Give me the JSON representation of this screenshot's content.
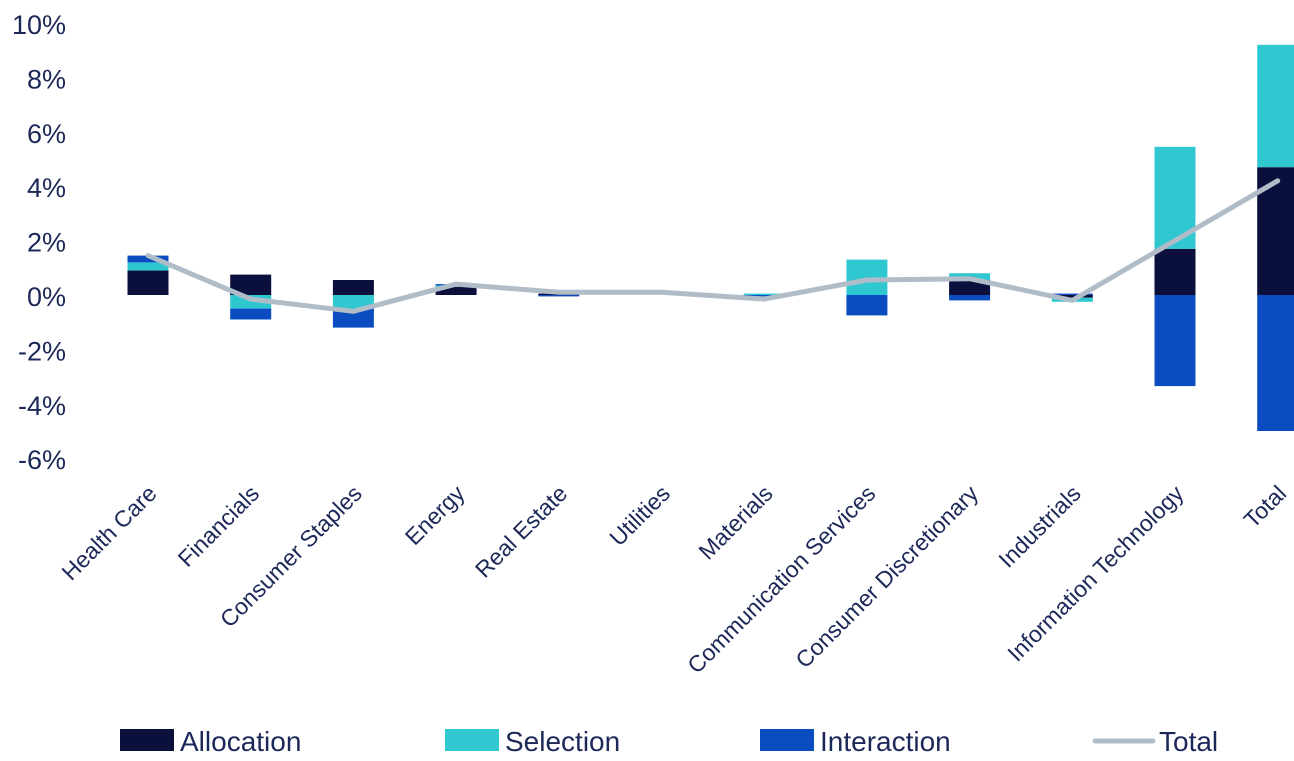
{
  "chart_data": {
    "type": "bar",
    "stacked": true,
    "categories": [
      "Health Care",
      "Financials",
      "Consumer Staples",
      "Energy",
      "Real Estate",
      "Utilities",
      "Materials",
      "Communication Services",
      "Consumer Discretionary",
      "Industrials",
      "Information Technology",
      "Total"
    ],
    "series": [
      {
        "name": "Allocation",
        "kind": "bar",
        "color": "#0a0f3c",
        "values": [
          0.9,
          0.75,
          0.55,
          0.3,
          0.05,
          0.0,
          0.0,
          0.0,
          0.55,
          -0.1,
          1.7,
          4.7
        ]
      },
      {
        "name": "Selection",
        "kind": "bar",
        "color": "#30c8d0",
        "values": [
          0.3,
          -0.5,
          -0.5,
          0.05,
          0.0,
          0.0,
          0.05,
          1.3,
          0.25,
          -0.15,
          3.75,
          4.5
        ]
      },
      {
        "name": "Interaction",
        "kind": "bar",
        "color": "#0b4dc0",
        "values": [
          0.25,
          -0.4,
          -0.7,
          0.05,
          -0.05,
          0.0,
          -0.05,
          -0.75,
          -0.2,
          0.05,
          -3.35,
          -5.0
        ]
      },
      {
        "name": "Total",
        "kind": "line",
        "color": "#b0bcc8",
        "values": [
          1.45,
          -0.15,
          -0.6,
          0.4,
          0.1,
          0.1,
          -0.15,
          0.55,
          0.6,
          -0.2,
          2.0,
          4.2
        ]
      }
    ],
    "y_tick_labels": [
      "10%",
      "8%",
      "6%",
      "4%",
      "2%",
      "0%",
      "-2%",
      "-4%",
      "-6%"
    ],
    "y_ticks": [
      10,
      8,
      6,
      4,
      2,
      0,
      -2,
      -4,
      -6
    ],
    "ylim": [
      -6,
      10
    ],
    "grid": false,
    "legend_position": "bottom",
    "title": "",
    "xlabel": "",
    "ylabel": ""
  }
}
